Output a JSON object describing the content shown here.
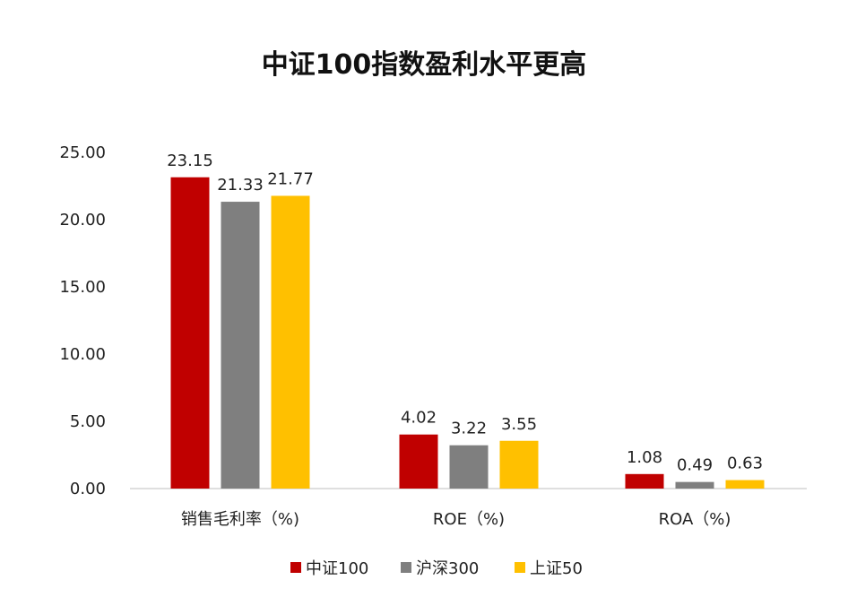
{
  "chart_data": {
    "type": "bar",
    "title": "中证100指数盈利水平更高",
    "xlabel": "",
    "ylabel": "",
    "categories": [
      "销售毛利率（%)",
      "ROE（%)",
      "ROA（%)"
    ],
    "series": [
      {
        "name": "中证100",
        "color": "#C00000",
        "values": [
          23.15,
          4.02,
          1.08
        ],
        "labels": [
          "23.15",
          "4.02",
          "1.08"
        ]
      },
      {
        "name": "沪深300",
        "color": "#7F7F7F",
        "values": [
          21.33,
          3.22,
          0.49
        ],
        "labels": [
          "21.33",
          "3.22",
          "0.49"
        ]
      },
      {
        "name": "上证50",
        "color": "#FFC000",
        "values": [
          21.77,
          3.55,
          0.63
        ],
        "labels": [
          "21.77",
          "3.55",
          "0.63"
        ]
      }
    ],
    "ylim": [
      0,
      25
    ],
    "yticks": [
      0,
      5,
      10,
      15,
      20,
      25
    ],
    "ytick_labels": [
      "0.00",
      "5.00",
      "10.00",
      "15.00",
      "20.00",
      "25.00"
    ],
    "grid": false,
    "legend_position": "bottom"
  }
}
